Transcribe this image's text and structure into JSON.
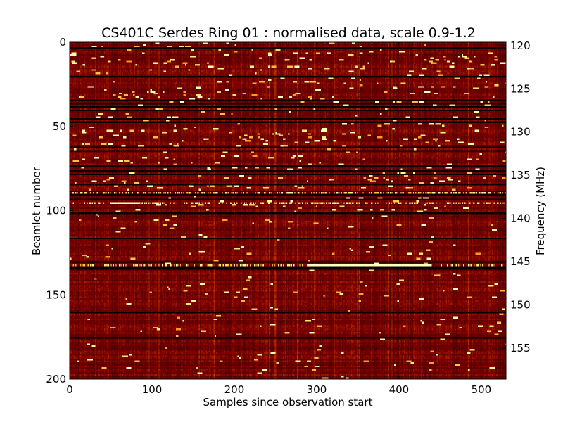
{
  "chart_data": {
    "type": "heatmap",
    "title": "CS401C Serdes Ring 01 : normalised data, scale 0.9-1.2",
    "xlabel": "Samples since observation start",
    "ylabel": "Beamlet number",
    "ylabel_right": "Frequency (MHz)",
    "xlim": [
      0,
      530
    ],
    "ylim": [
      200,
      0
    ],
    "ylim_right": [
      119.6,
      158.6
    ],
    "x_ticks": [
      "0",
      "100",
      "200",
      "300",
      "400",
      "500"
    ],
    "y_ticks": [
      "0",
      "50",
      "100",
      "150",
      "200"
    ],
    "y_right_ticks": [
      "120",
      "125",
      "130",
      "135",
      "140",
      "145",
      "150",
      "155"
    ],
    "colormap": "afmhot",
    "color_scale": [
      0.9,
      1.2
    ],
    "rows": 200,
    "columns": 530,
    "dark_rows": [
      3,
      20,
      34,
      36,
      38,
      40,
      45,
      47,
      62,
      64,
      73,
      76,
      78,
      84,
      88,
      90,
      93,
      101,
      116,
      130,
      133,
      134,
      160,
      175
    ],
    "bright_rows": [
      89,
      95,
      132
    ],
    "grid": false
  }
}
